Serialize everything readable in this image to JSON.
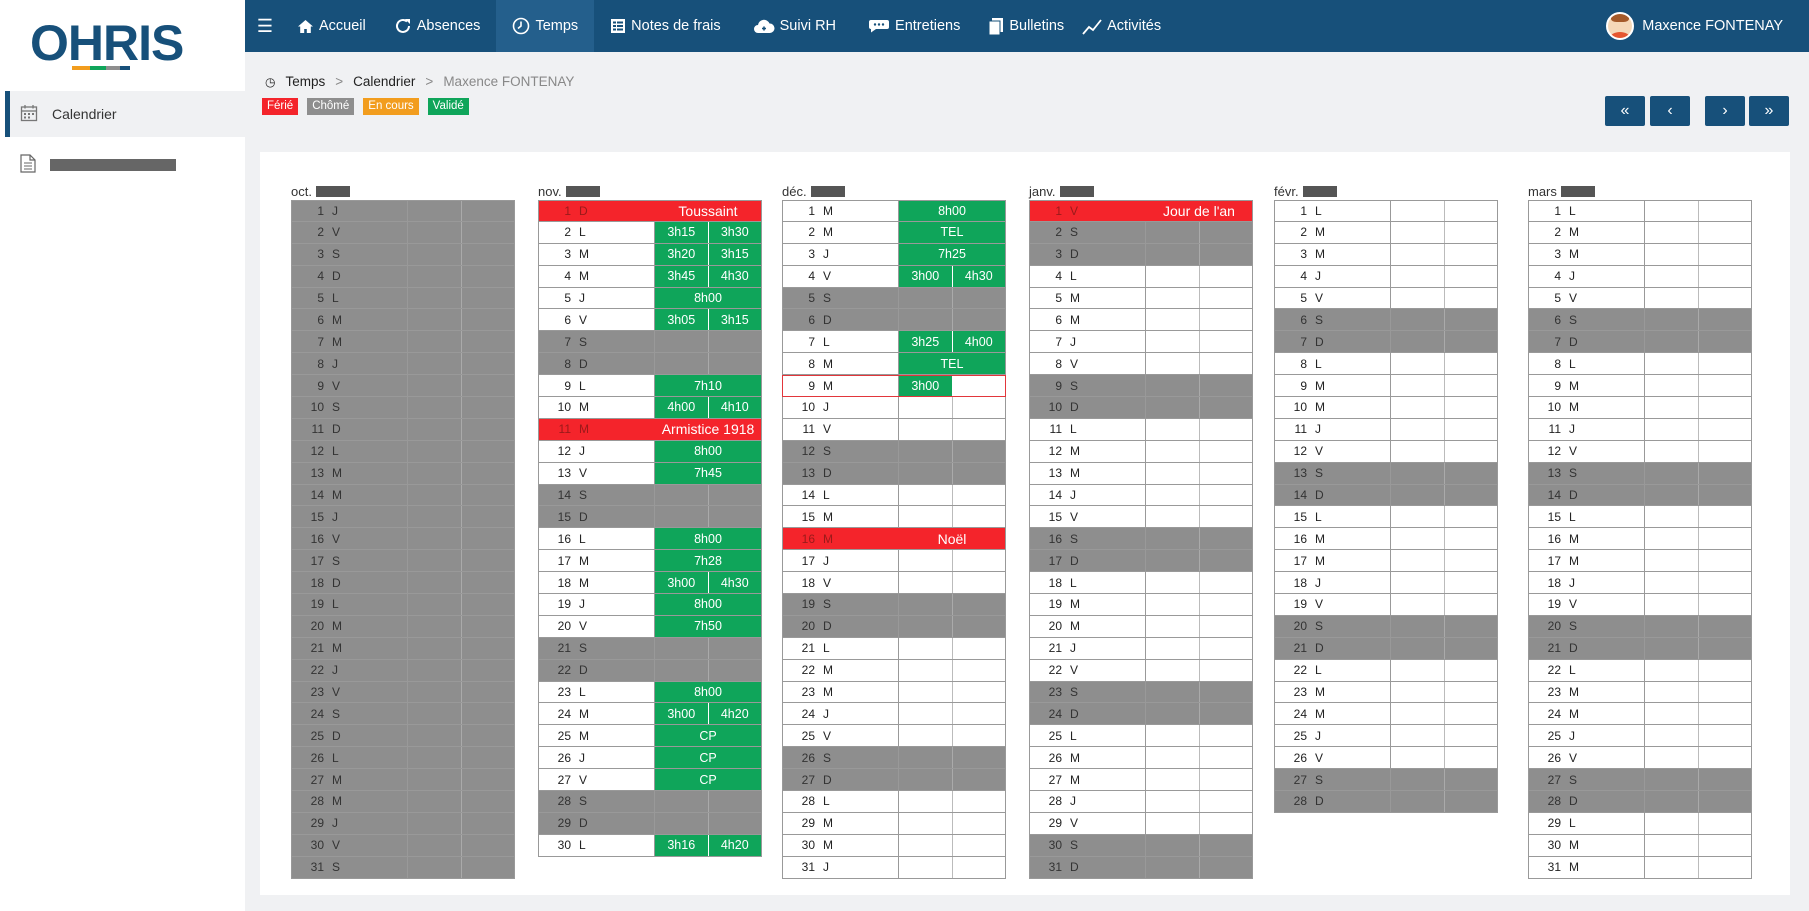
{
  "app": {
    "logo_text": "OHRIS"
  },
  "sidebar": {
    "items": [
      {
        "label": "Calendrier",
        "icon": "calendar-icon"
      },
      {
        "label": "",
        "icon": "document-icon"
      }
    ]
  },
  "nav": {
    "items": [
      {
        "label": "Accueil",
        "icon": "home-icon"
      },
      {
        "label": "Absences",
        "icon": "refresh-icon"
      },
      {
        "label": "Temps",
        "icon": "clock-icon",
        "active": true
      },
      {
        "label": "Notes de frais",
        "icon": "receipt-icon"
      },
      {
        "label": "Suivi RH",
        "icon": "cloud-icon"
      },
      {
        "label": "Entretiens",
        "icon": "comment-icon"
      },
      {
        "label": "Bulletins",
        "icon": "files-icon"
      },
      {
        "label": "Activités",
        "icon": "chart-line-icon"
      }
    ],
    "user": "Maxence FONTENAY"
  },
  "breadcrumb": {
    "root": "Temps",
    "level2": "Calendrier",
    "current": "Maxence FONTENAY"
  },
  "legend": [
    {
      "label": "Férié",
      "color": "#f4242b"
    },
    {
      "label": "Chômé",
      "color": "#8e8e8e"
    },
    {
      "label": "En cours",
      "color": "#f29d1e"
    },
    {
      "label": "Validé",
      "color": "#0fa55a"
    }
  ],
  "pager": {
    "first": "«",
    "prev": "‹",
    "next": "›",
    "last": "»"
  },
  "months": [
    {
      "name": "oct.",
      "all_grey": true,
      "days": [
        [
          "1",
          "J"
        ],
        [
          "2",
          "V"
        ],
        [
          "3",
          "S"
        ],
        [
          "4",
          "D"
        ],
        [
          "5",
          "L"
        ],
        [
          "6",
          "M"
        ],
        [
          "7",
          "M"
        ],
        [
          "8",
          "J"
        ],
        [
          "9",
          "V"
        ],
        [
          "10",
          "S"
        ],
        [
          "11",
          "D"
        ],
        [
          "12",
          "L"
        ],
        [
          "13",
          "M"
        ],
        [
          "14",
          "M"
        ],
        [
          "15",
          "J"
        ],
        [
          "16",
          "V"
        ],
        [
          "17",
          "S"
        ],
        [
          "18",
          "D"
        ],
        [
          "19",
          "L"
        ],
        [
          "20",
          "M"
        ],
        [
          "21",
          "M"
        ],
        [
          "22",
          "J"
        ],
        [
          "23",
          "V"
        ],
        [
          "24",
          "S"
        ],
        [
          "25",
          "D"
        ],
        [
          "26",
          "L"
        ],
        [
          "27",
          "M"
        ],
        [
          "28",
          "M"
        ],
        [
          "29",
          "J"
        ],
        [
          "30",
          "V"
        ],
        [
          "31",
          "S"
        ]
      ]
    },
    {
      "name": "nov.",
      "days": [
        [
          "1",
          "D",
          "F",
          "Toussaint"
        ],
        [
          "2",
          "L",
          "T",
          "3h15",
          "3h30"
        ],
        [
          "3",
          "M",
          "T",
          "3h20",
          "3h15"
        ],
        [
          "4",
          "M",
          "T",
          "3h45",
          "4h30"
        ],
        [
          "5",
          "J",
          "W",
          "8h00"
        ],
        [
          "6",
          "V",
          "T",
          "3h05",
          "3h15"
        ],
        [
          "7",
          "S",
          "G"
        ],
        [
          "8",
          "D",
          "G"
        ],
        [
          "9",
          "L",
          "W",
          "7h10"
        ],
        [
          "10",
          "M",
          "T",
          "4h00",
          "4h10"
        ],
        [
          "11",
          "M",
          "F",
          "Armistice 1918"
        ],
        [
          "12",
          "J",
          "W",
          "8h00"
        ],
        [
          "13",
          "V",
          "W",
          "7h45"
        ],
        [
          "14",
          "S",
          "G"
        ],
        [
          "15",
          "D",
          "G"
        ],
        [
          "16",
          "L",
          "W",
          "8h00"
        ],
        [
          "17",
          "M",
          "W",
          "7h28"
        ],
        [
          "18",
          "M",
          "T",
          "3h00",
          "4h30"
        ],
        [
          "19",
          "J",
          "W",
          "8h00"
        ],
        [
          "20",
          "V",
          "W",
          "7h50"
        ],
        [
          "21",
          "S",
          "G"
        ],
        [
          "22",
          "D",
          "G"
        ],
        [
          "23",
          "L",
          "W",
          "8h00"
        ],
        [
          "24",
          "M",
          "T",
          "3h00",
          "4h20"
        ],
        [
          "25",
          "M",
          "W",
          "CP"
        ],
        [
          "26",
          "J",
          "W",
          "CP"
        ],
        [
          "27",
          "V",
          "W",
          "CP"
        ],
        [
          "28",
          "S",
          "G"
        ],
        [
          "29",
          "D",
          "G"
        ],
        [
          "30",
          "L",
          "T",
          "3h16",
          "4h20"
        ]
      ]
    },
    {
      "name": "déc.",
      "days": [
        [
          "1",
          "M",
          "W",
          "8h00"
        ],
        [
          "2",
          "M",
          "W",
          "TEL"
        ],
        [
          "3",
          "J",
          "W",
          "7h25"
        ],
        [
          "4",
          "V",
          "T",
          "3h00",
          "4h30"
        ],
        [
          "5",
          "S",
          "G"
        ],
        [
          "6",
          "D",
          "G"
        ],
        [
          "7",
          "L",
          "T",
          "3h25",
          "4h00"
        ],
        [
          "8",
          "M",
          "W",
          "TEL"
        ],
        [
          "9",
          "M",
          "H",
          "3h00"
        ],
        [
          "10",
          "J"
        ],
        [
          "11",
          "V"
        ],
        [
          "12",
          "S",
          "G"
        ],
        [
          "13",
          "D",
          "G"
        ],
        [
          "14",
          "L"
        ],
        [
          "15",
          "M"
        ],
        [
          "16",
          "M",
          "F",
          "Noël"
        ],
        [
          "17",
          "J"
        ],
        [
          "18",
          "V"
        ],
        [
          "19",
          "S",
          "G"
        ],
        [
          "20",
          "D",
          "G"
        ],
        [
          "21",
          "L"
        ],
        [
          "22",
          "M"
        ],
        [
          "23",
          "M"
        ],
        [
          "24",
          "J"
        ],
        [
          "25",
          "V"
        ],
        [
          "26",
          "S",
          "G"
        ],
        [
          "27",
          "D",
          "G"
        ],
        [
          "28",
          "L"
        ],
        [
          "29",
          "M"
        ],
        [
          "30",
          "M"
        ],
        [
          "31",
          "J"
        ]
      ]
    },
    {
      "name": "janv.",
      "days": [
        [
          "1",
          "V",
          "F",
          "Jour de l'an"
        ],
        [
          "2",
          "S",
          "G"
        ],
        [
          "3",
          "D",
          "G"
        ],
        [
          "4",
          "L"
        ],
        [
          "5",
          "M"
        ],
        [
          "6",
          "M"
        ],
        [
          "7",
          "J"
        ],
        [
          "8",
          "V"
        ],
        [
          "9",
          "S",
          "G"
        ],
        [
          "10",
          "D",
          "G"
        ],
        [
          "11",
          "L"
        ],
        [
          "12",
          "M"
        ],
        [
          "13",
          "M"
        ],
        [
          "14",
          "J"
        ],
        [
          "15",
          "V"
        ],
        [
          "16",
          "S",
          "G"
        ],
        [
          "17",
          "D",
          "G"
        ],
        [
          "18",
          "L"
        ],
        [
          "19",
          "M"
        ],
        [
          "20",
          "M"
        ],
        [
          "21",
          "J"
        ],
        [
          "22",
          "V"
        ],
        [
          "23",
          "S",
          "G"
        ],
        [
          "24",
          "D",
          "G"
        ],
        [
          "25",
          "L"
        ],
        [
          "26",
          "M"
        ],
        [
          "27",
          "M"
        ],
        [
          "28",
          "J"
        ],
        [
          "29",
          "V"
        ],
        [
          "30",
          "S",
          "G"
        ],
        [
          "31",
          "D",
          "G"
        ]
      ]
    },
    {
      "name": "févr.",
      "days": [
        [
          "1",
          "L"
        ],
        [
          "2",
          "M"
        ],
        [
          "3",
          "M"
        ],
        [
          "4",
          "J"
        ],
        [
          "5",
          "V"
        ],
        [
          "6",
          "S",
          "G"
        ],
        [
          "7",
          "D",
          "G"
        ],
        [
          "8",
          "L"
        ],
        [
          "9",
          "M"
        ],
        [
          "10",
          "M"
        ],
        [
          "11",
          "J"
        ],
        [
          "12",
          "V"
        ],
        [
          "13",
          "S",
          "G"
        ],
        [
          "14",
          "D",
          "G"
        ],
        [
          "15",
          "L"
        ],
        [
          "16",
          "M"
        ],
        [
          "17",
          "M"
        ],
        [
          "18",
          "J"
        ],
        [
          "19",
          "V"
        ],
        [
          "20",
          "S",
          "G"
        ],
        [
          "21",
          "D",
          "G"
        ],
        [
          "22",
          "L"
        ],
        [
          "23",
          "M"
        ],
        [
          "24",
          "M"
        ],
        [
          "25",
          "J"
        ],
        [
          "26",
          "V"
        ],
        [
          "27",
          "S",
          "G"
        ],
        [
          "28",
          "D",
          "G"
        ]
      ]
    },
    {
      "name": "mars",
      "days": [
        [
          "1",
          "L"
        ],
        [
          "2",
          "M"
        ],
        [
          "3",
          "M"
        ],
        [
          "4",
          "J"
        ],
        [
          "5",
          "V"
        ],
        [
          "6",
          "S",
          "G"
        ],
        [
          "7",
          "D",
          "G"
        ],
        [
          "8",
          "L"
        ],
        [
          "9",
          "M"
        ],
        [
          "10",
          "M"
        ],
        [
          "11",
          "J"
        ],
        [
          "12",
          "V"
        ],
        [
          "13",
          "S",
          "G"
        ],
        [
          "14",
          "D",
          "G"
        ],
        [
          "15",
          "L"
        ],
        [
          "16",
          "M"
        ],
        [
          "17",
          "M"
        ],
        [
          "18",
          "J"
        ],
        [
          "19",
          "V"
        ],
        [
          "20",
          "S",
          "G"
        ],
        [
          "21",
          "D",
          "G"
        ],
        [
          "22",
          "L"
        ],
        [
          "23",
          "M"
        ],
        [
          "24",
          "M"
        ],
        [
          "25",
          "J"
        ],
        [
          "26",
          "V"
        ],
        [
          "27",
          "S",
          "G"
        ],
        [
          "28",
          "D",
          "G"
        ],
        [
          "29",
          "L"
        ],
        [
          "30",
          "M"
        ],
        [
          "31",
          "M"
        ]
      ]
    }
  ]
}
